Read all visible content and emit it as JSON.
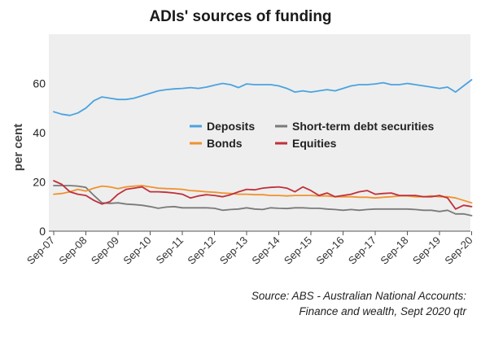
{
  "title": "ADIs' sources of funding",
  "source_line1": "Source: ABS - Australian National Accounts:",
  "source_line2": "Finance and wealth, Sept 2020 qtr",
  "chart_data": {
    "type": "line",
    "title": "ADIs' sources of funding",
    "xlabel": "",
    "ylabel": "per cent",
    "ylim": [
      0,
      80
    ],
    "yticks": [
      0,
      20,
      40,
      60
    ],
    "grid": false,
    "legend_position": "center-right",
    "x_tick_labels": [
      "Sep-07",
      "Sep-08",
      "Sep-09",
      "Sep-10",
      "Sep-11",
      "Sep-12",
      "Sep-13",
      "Sep-14",
      "Sep-15",
      "Sep-16",
      "Sep-17",
      "Sep-18",
      "Sep-19",
      "Sep-20"
    ],
    "x_start": "Sep-07",
    "x_frequency": "quarterly",
    "series": [
      {
        "name": "Deposits",
        "color": "#4aa3df",
        "values": [
          48.5,
          47.5,
          47,
          48,
          50,
          53,
          54.5,
          54,
          53.5,
          53.5,
          54,
          55,
          56,
          57,
          57.5,
          57.8,
          58,
          58.3,
          58,
          58.5,
          59.3,
          60,
          59.5,
          58.3,
          59.8,
          59.5,
          59.5,
          59.5,
          59,
          58,
          56.5,
          57,
          56.5,
          57,
          57.5,
          57,
          58,
          59,
          59.5,
          59.5,
          59.8,
          60.3,
          59.5,
          59.5,
          60,
          59.5,
          59,
          58.5,
          58,
          58.5,
          56.5,
          59,
          61.5
        ]
      },
      {
        "name": "Short-term debt securities",
        "color": "#7a7a7a",
        "values": [
          18.5,
          18.5,
          18.5,
          18.3,
          17.8,
          14.5,
          11.5,
          11.3,
          11.5,
          11,
          10.8,
          10.5,
          10,
          9.3,
          9.8,
          10,
          9.5,
          9.5,
          9.5,
          9.5,
          9.3,
          8.5,
          8.8,
          9,
          9.5,
          9,
          8.8,
          9.5,
          9.3,
          9.2,
          9.5,
          9.5,
          9.3,
          9.3,
          9,
          8.8,
          8.5,
          8.8,
          8.5,
          8.8,
          9,
          9,
          9,
          9,
          9,
          8.8,
          8.5,
          8.5,
          8,
          8.5,
          7,
          7,
          6.3
        ]
      },
      {
        "name": "Bonds",
        "color": "#f0922e",
        "values": [
          15,
          15.3,
          16,
          17,
          16.3,
          17.5,
          18.3,
          18,
          17.3,
          18,
          18.3,
          18.5,
          18,
          17.5,
          17.3,
          17.2,
          17,
          16.5,
          16.3,
          16,
          15.8,
          15.5,
          15.3,
          15,
          15,
          14.8,
          14.8,
          14.5,
          14.5,
          14.3,
          14.5,
          14.5,
          14.5,
          14.3,
          14.3,
          14,
          14,
          14,
          13.8,
          13.8,
          13.5,
          13.8,
          14,
          14.3,
          14.3,
          14,
          14,
          14.3,
          14,
          14,
          13.5,
          12.5,
          11.5
        ]
      },
      {
        "name": "Equities",
        "color": "#c0303a",
        "values": [
          20.5,
          19,
          16,
          15,
          14.5,
          12.5,
          11,
          12,
          15,
          17,
          17.5,
          18,
          16,
          16,
          15.8,
          15.5,
          15,
          13.5,
          14.3,
          14.8,
          14.5,
          14,
          14.8,
          16,
          17,
          16.8,
          17.5,
          17.8,
          18,
          17.5,
          16,
          18,
          16.5,
          14.5,
          15.5,
          14,
          14.5,
          15,
          16,
          16.5,
          15,
          15.3,
          15.5,
          14.5,
          14.5,
          14.5,
          14,
          14,
          14.5,
          13.5,
          9,
          10.5,
          10
        ]
      }
    ]
  }
}
